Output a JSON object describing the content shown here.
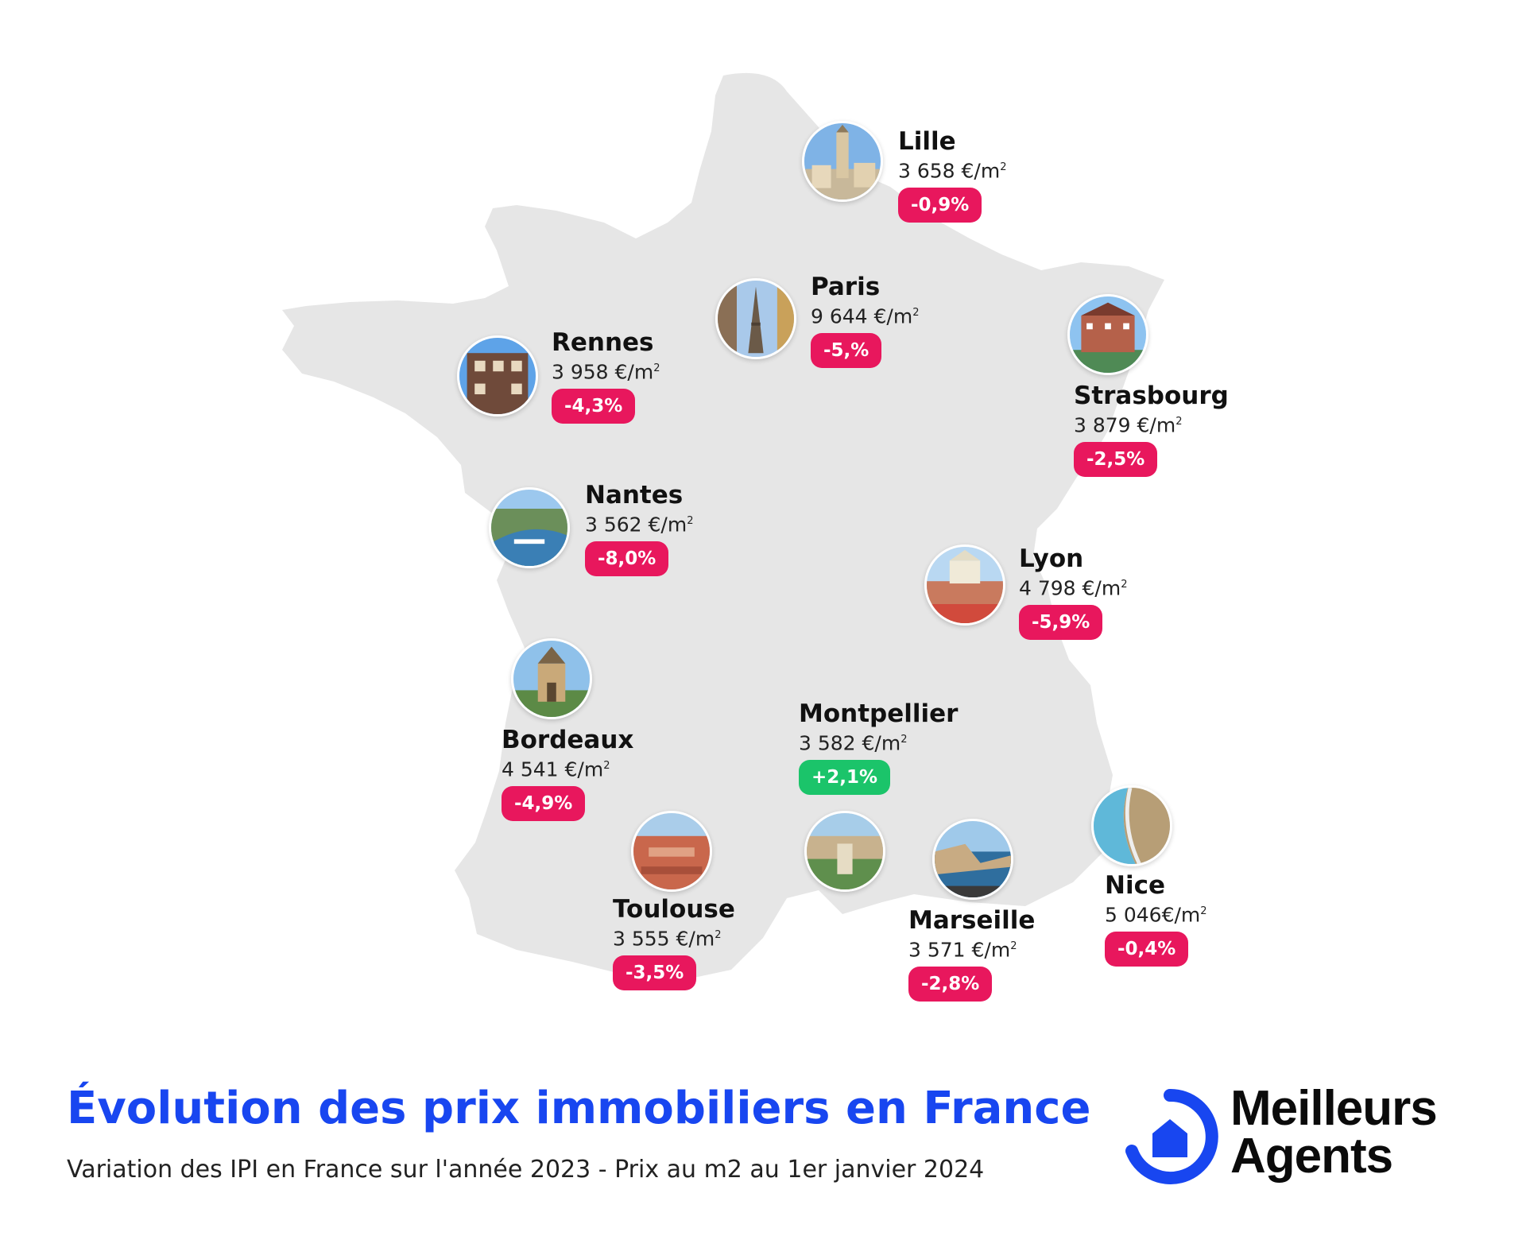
{
  "colors": {
    "map_fill": "#e6e6e6",
    "negative_badge": "#e8175d",
    "positive_badge": "#1bc46a",
    "title": "#1846f0",
    "logo_blue": "#1846f0"
  },
  "unit_superscript": "2",
  "cities": [
    {
      "id": "lille",
      "name": "Lille",
      "price": "3 658 €/m",
      "change": "-0,9%",
      "trend": "negative"
    },
    {
      "id": "paris",
      "name": "Paris",
      "price": "9 644 €/m",
      "change": "-5,%",
      "trend": "negative"
    },
    {
      "id": "strasbourg",
      "name": "Strasbourg",
      "price": "3 879 €/m",
      "change": "-2,5%",
      "trend": "negative"
    },
    {
      "id": "rennes",
      "name": "Rennes",
      "price": "3 958 €/m",
      "change": "-4,3%",
      "trend": "negative"
    },
    {
      "id": "nantes",
      "name": "Nantes",
      "price": "3 562 €/m",
      "change": "-8,0%",
      "trend": "negative"
    },
    {
      "id": "lyon",
      "name": "Lyon",
      "price": "4 798 €/m",
      "change": "-5,9%",
      "trend": "negative"
    },
    {
      "id": "bordeaux",
      "name": "Bordeaux",
      "price": "4 541 €/m",
      "change": "-4,9%",
      "trend": "negative"
    },
    {
      "id": "montpellier",
      "name": "Montpellier",
      "price": "3 582 €/m",
      "change": "+2,1%",
      "trend": "positive"
    },
    {
      "id": "toulouse",
      "name": "Toulouse",
      "price": "3 555 €/m",
      "change": "-3,5%",
      "trend": "negative"
    },
    {
      "id": "marseille",
      "name": "Marseille",
      "price": "3 571 €/m",
      "change": "-2,8%",
      "trend": "negative"
    },
    {
      "id": "nice",
      "name": "Nice",
      "price": "5 046€/m",
      "change": "-0,4%",
      "trend": "negative"
    }
  ],
  "footer": {
    "title": "Évolution des prix immobiliers en France",
    "subtitle": "Variation des IPI en France sur l'année 2023 - Prix au m2 au 1er janvier 2024"
  },
  "logo": {
    "line1": "Meilleurs",
    "line2": "Agents",
    "icon": "house-in-circle-icon"
  }
}
